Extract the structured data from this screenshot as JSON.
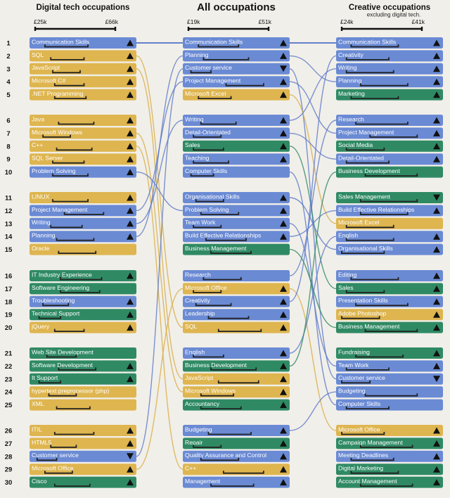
{
  "chart_data": {
    "type": "ranked-bump-table",
    "title": "All occupations",
    "colors": {
      "blue": "#6a8ad4",
      "yellow": "#deb54f",
      "green": "#2f8a64",
      "background": "#f1efe9",
      "link_blue": "#5b79c9",
      "link_yellow": "#d8ad45",
      "salary_bar": "#222222"
    },
    "ranks": [
      1,
      2,
      3,
      4,
      5,
      6,
      7,
      8,
      9,
      10,
      11,
      12,
      13,
      14,
      15,
      16,
      17,
      18,
      19,
      20,
      21,
      22,
      23,
      24,
      25,
      26,
      27,
      28,
      29,
      30
    ],
    "columns": [
      {
        "key": "digital",
        "title": "Digital tech occupations",
        "subtitle": "",
        "scale": {
          "min_label": "£25k",
          "max_label": "£66k",
          "min": 25,
          "max": 66
        },
        "items": [
          {
            "label": "Communication Skills",
            "color": "blue",
            "trend": "up",
            "salary": [
              30,
              52
            ]
          },
          {
            "label": "SQL",
            "color": "yellow",
            "trend": "up",
            "salary": [
              33,
              50
            ]
          },
          {
            "label": "JavaScript",
            "color": "yellow",
            "trend": "up",
            "salary": [
              34,
              48
            ]
          },
          {
            "label": "Microsoft C#",
            "color": "yellow",
            "trend": "up",
            "salary": [
              35,
              50
            ]
          },
          {
            "label": ".NET Programming",
            "color": "yellow",
            "trend": "up",
            "salary": [
              35,
              51
            ]
          },
          {
            "label": "Java",
            "color": "yellow",
            "trend": "up",
            "salary": [
              37,
              55
            ]
          },
          {
            "label": "Microsoft Windows",
            "color": "yellow",
            "trend": "up",
            "salary": [
              29,
              43
            ]
          },
          {
            "label": "C++",
            "color": "yellow",
            "trend": "up",
            "salary": [
              36,
              54
            ]
          },
          {
            "label": "SQL Server",
            "color": "yellow",
            "trend": "up",
            "salary": [
              34,
              50
            ]
          },
          {
            "label": "Problem Solving",
            "color": "blue",
            "trend": "up",
            "salary": [
              34,
              52
            ]
          },
          {
            "label": "LINUX",
            "color": "yellow",
            "trend": "up",
            "salary": [
              34,
              52
            ]
          },
          {
            "label": "Project Management",
            "color": "blue",
            "trend": "up",
            "salary": [
              40,
              60
            ]
          },
          {
            "label": "Writing",
            "color": "blue",
            "trend": "up",
            "salary": [
              33,
              49
            ]
          },
          {
            "label": "Planning",
            "color": "blue",
            "trend": "up",
            "salary": [
              36,
              55
            ]
          },
          {
            "label": "Oracle",
            "color": "yellow",
            "trend": "",
            "salary": [
              37,
              56
            ]
          },
          {
            "label": "IT Industry Experience",
            "color": "green",
            "trend": "up",
            "salary": [
              38,
              59
            ]
          },
          {
            "label": "Software Engineering",
            "color": "green",
            "trend": "",
            "salary": [
              38,
              58
            ]
          },
          {
            "label": "Troubleshooting",
            "color": "blue",
            "trend": "up",
            "salary": [
              29,
              42
            ]
          },
          {
            "label": "Technical Support",
            "color": "green",
            "trend": "up",
            "salary": [
              27,
              38
            ]
          },
          {
            "label": "jQuery",
            "color": "yellow",
            "trend": "up",
            "salary": [
              35,
              50
            ]
          },
          {
            "label": "Web Site Development",
            "color": "green",
            "trend": "",
            "salary": [
              31,
              46
            ]
          },
          {
            "label": "Software Development",
            "color": "green",
            "trend": "up",
            "salary": [
              37,
              56
            ]
          },
          {
            "label": "It Support",
            "color": "green",
            "trend": "up",
            "salary": [
              27,
              38
            ]
          },
          {
            "label": "hypertext preprocessor (php)",
            "color": "yellow",
            "trend": "",
            "salary": [
              32,
              46
            ]
          },
          {
            "label": "XML",
            "color": "yellow",
            "trend": "",
            "salary": [
              36,
              53
            ]
          },
          {
            "label": "ITIL",
            "color": "yellow",
            "trend": "up",
            "salary": [
              35,
              55
            ]
          },
          {
            "label": "HTML5",
            "color": "yellow",
            "trend": "up",
            "salary": [
              33,
              46
            ]
          },
          {
            "label": "Customer service",
            "color": "blue",
            "trend": "down",
            "salary": [
              26,
              36
            ]
          },
          {
            "label": "Microsoft Office",
            "color": "yellow",
            "trend": "up",
            "salary": [
              30,
              44
            ]
          },
          {
            "label": "Cisco",
            "color": "green",
            "trend": "up",
            "salary": [
              35,
              53
            ]
          }
        ]
      },
      {
        "key": "all",
        "title": "All occupations",
        "subtitle": "",
        "scale": {
          "min_label": "£19k",
          "max_label": "£51k",
          "min": 19,
          "max": 51
        },
        "items": [
          {
            "label": "Communication Skills",
            "color": "blue",
            "trend": "up",
            "salary": [
              23,
              39
            ]
          },
          {
            "label": "Planning",
            "color": "blue",
            "trend": "up",
            "salary": [
              25,
              43
            ]
          },
          {
            "label": "Customer service",
            "color": "blue",
            "trend": "down",
            "salary": [
              20,
              28
            ]
          },
          {
            "label": "Project Management",
            "color": "blue",
            "trend": "up",
            "salary": [
              34,
              49
            ]
          },
          {
            "label": "Microsoft Excel",
            "color": "yellow",
            "trend": "up",
            "salary": [
              23,
              36
            ]
          },
          {
            "label": "Writing",
            "color": "blue",
            "trend": "up",
            "salary": [
              24,
              38
            ]
          },
          {
            "label": "Detail-Orientated",
            "color": "blue",
            "trend": "up",
            "salary": [
              21,
              32
            ]
          },
          {
            "label": "Sales",
            "color": "green",
            "trend": "up",
            "salary": [
              21,
              33
            ]
          },
          {
            "label": "Teaching",
            "color": "blue",
            "trend": "up",
            "salary": [
              21,
              35
            ]
          },
          {
            "label": "Computer Skills",
            "color": "blue",
            "trend": "",
            "salary": [
              20,
              29
            ]
          },
          {
            "label": "Organisational Skills",
            "color": "blue",
            "trend": "up",
            "salary": [
              22,
              33
            ]
          },
          {
            "label": "Problem Solving",
            "color": "blue",
            "trend": "up",
            "salary": [
              24,
              39
            ]
          },
          {
            "label": "Team Work",
            "color": "blue",
            "trend": "up",
            "salary": [
              21,
              32
            ]
          },
          {
            "label": "Build Effective Relationships",
            "color": "blue",
            "trend": "up",
            "salary": [
              26,
              42
            ]
          },
          {
            "label": "Business Management",
            "color": "green",
            "trend": "",
            "salary": [
              28,
              44
            ]
          },
          {
            "label": "Research",
            "color": "blue",
            "trend": "",
            "salary": [
              25,
              40
            ]
          },
          {
            "label": "Microsoft Office",
            "color": "yellow",
            "trend": "up",
            "salary": [
              21,
              32
            ]
          },
          {
            "label": "Creativity",
            "color": "blue",
            "trend": "up",
            "salary": [
              22,
              36
            ]
          },
          {
            "label": "Leadership",
            "color": "blue",
            "trend": "up",
            "salary": [
              27,
              43
            ]
          },
          {
            "label": "SQL",
            "color": "yellow",
            "trend": "up",
            "salary": [
              31,
              48
            ]
          },
          {
            "label": "English",
            "color": "blue",
            "trend": "up",
            "salary": [
              21,
              33
            ]
          },
          {
            "label": "Business Development",
            "color": "green",
            "trend": "up",
            "salary": [
              28,
              46
            ]
          },
          {
            "label": "JavaScript",
            "color": "yellow",
            "trend": "up",
            "salary": [
              31,
              47
            ]
          },
          {
            "label": "Microsoft Windows",
            "color": "yellow",
            "trend": "up",
            "salary": [
              24,
              37
            ]
          },
          {
            "label": "Accountancy",
            "color": "green",
            "trend": "up",
            "salary": [
              24,
              40
            ]
          },
          {
            "label": "Budgeting",
            "color": "blue",
            "trend": "up",
            "salary": [
              27,
              44
            ]
          },
          {
            "label": "Repair",
            "color": "green",
            "trend": "up",
            "salary": [
              21,
              32
            ]
          },
          {
            "label": "Quality Assurance and Control",
            "color": "blue",
            "trend": "up",
            "salary": [
              24,
              39
            ]
          },
          {
            "label": "C++",
            "color": "yellow",
            "trend": "up",
            "salary": [
              33,
              49
            ]
          },
          {
            "label": "Management",
            "color": "blue",
            "trend": "up",
            "salary": [
              28,
              45
            ]
          }
        ]
      },
      {
        "key": "creative",
        "title": "Creative occupations",
        "subtitle": "excluding digital tech.",
        "scale": {
          "min_label": "£24k",
          "max_label": "£41k",
          "min": 24,
          "max": 41
        },
        "items": [
          {
            "label": "Communication Skills",
            "color": "blue",
            "trend": "up",
            "salary": [
              26,
              36
            ]
          },
          {
            "label": "Creativity",
            "color": "blue",
            "trend": "up",
            "salary": [
              25,
              34
            ]
          },
          {
            "label": "Writing",
            "color": "blue",
            "trend": "up",
            "salary": [
              25,
              35
            ]
          },
          {
            "label": "Planning",
            "color": "blue",
            "trend": "up",
            "salary": [
              28,
              38
            ]
          },
          {
            "label": "Marketing",
            "color": "green",
            "trend": "up",
            "salary": [
              26,
              36
            ]
          },
          {
            "label": "Research",
            "color": "blue",
            "trend": "up",
            "salary": [
              27,
              38
            ]
          },
          {
            "label": "Project Management",
            "color": "blue",
            "trend": "up",
            "salary": [
              30,
              40
            ]
          },
          {
            "label": "Social Media",
            "color": "green",
            "trend": "up",
            "salary": [
              25,
              33
            ]
          },
          {
            "label": "Detail-Orientated",
            "color": "blue",
            "trend": "up",
            "salary": [
              25,
              34
            ]
          },
          {
            "label": "Business Development",
            "color": "green",
            "trend": "",
            "salary": [
              29,
              40
            ]
          },
          {
            "label": "Sales Management",
            "color": "green",
            "trend": "down",
            "salary": [
              28,
              40
            ]
          },
          {
            "label": "Build Effective Relationships",
            "color": "blue",
            "trend": "up",
            "salary": [
              28,
              38
            ]
          },
          {
            "label": "Microsoft Excel",
            "color": "yellow",
            "trend": "",
            "salary": [
              25,
              35
            ]
          },
          {
            "label": "English",
            "color": "blue",
            "trend": "up",
            "salary": [
              25,
              35
            ]
          },
          {
            "label": "Organisational Skills",
            "color": "blue",
            "trend": "up",
            "salary": [
              24,
              33
            ]
          },
          {
            "label": "Editing",
            "color": "blue",
            "trend": "up",
            "salary": [
              26,
              36
            ]
          },
          {
            "label": "Sales",
            "color": "green",
            "trend": "up",
            "salary": [
              25,
              33
            ]
          },
          {
            "label": "Presentation Skills",
            "color": "blue",
            "trend": "up",
            "salary": [
              27,
              38
            ]
          },
          {
            "label": "Adobe Photoshop",
            "color": "yellow",
            "trend": "up",
            "salary": [
              24,
              32
            ]
          },
          {
            "label": "Business Management",
            "color": "green",
            "trend": "up",
            "salary": [
              29,
              40
            ]
          },
          {
            "label": "Fundraising",
            "color": "green",
            "trend": "up",
            "salary": [
              27,
              37
            ]
          },
          {
            "label": "Team Work",
            "color": "blue",
            "trend": "up",
            "salary": [
              25,
              34
            ]
          },
          {
            "label": "Customer service",
            "color": "blue",
            "trend": "down",
            "salary": [
              24,
              30
            ]
          },
          {
            "label": "Budgeting",
            "color": "blue",
            "trend": "",
            "salary": [
              29,
              40
            ]
          },
          {
            "label": "Computer Skills",
            "color": "blue",
            "trend": "",
            "salary": [
              25,
              34
            ]
          },
          {
            "label": "Microsoft Office",
            "color": "yellow",
            "trend": "up",
            "salary": [
              24,
              33
            ]
          },
          {
            "label": "Campaign Management",
            "color": "green",
            "trend": "up",
            "salary": [
              28,
              39
            ]
          },
          {
            "label": "Meeting Deadlines",
            "color": "blue",
            "trend": "up",
            "salary": [
              26,
              35
            ]
          },
          {
            "label": "Digital Marketing",
            "color": "green",
            "trend": "up",
            "salary": [
              26,
              36
            ]
          },
          {
            "label": "Account Management",
            "color": "green",
            "trend": "up",
            "salary": [
              28,
              39
            ]
          }
        ]
      }
    ]
  }
}
